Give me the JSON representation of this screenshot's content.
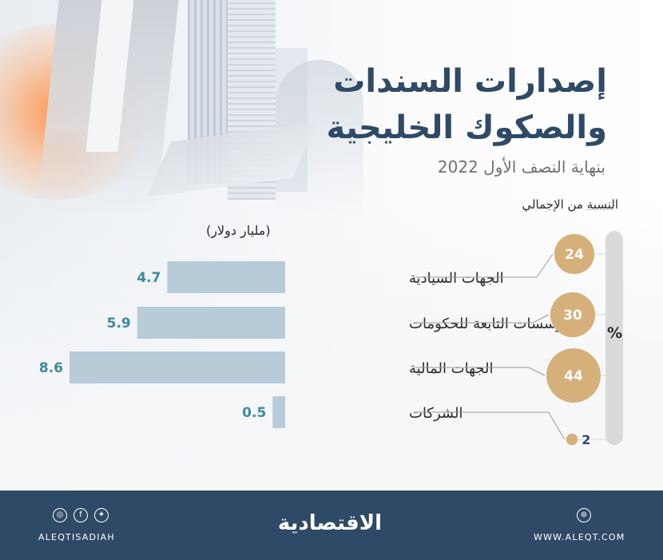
{
  "header": {
    "title_line1": "إصدارات السندات",
    "title_line2": "والصكوك الخليجية",
    "subtitle": "بنهاية النصف الأول 2022"
  },
  "share_label": "النسبة من الإجمالي",
  "unit_label": "(مليار دولار)",
  "percent_sign": "%",
  "chart_data": {
    "type": "bar",
    "orientation": "horizontal",
    "categories": [
      "الجهات السيادية",
      "المؤسسات التابعة للحكومات",
      "الجهات المالية",
      "الشركات"
    ],
    "values": [
      4.7,
      5.9,
      8.6,
      0.5
    ],
    "value_labels": [
      "4.7",
      "5.9",
      "8.6",
      "0.5"
    ],
    "share_percent": [
      24,
      30,
      44,
      2
    ],
    "share_labels": [
      "24",
      "30",
      "44",
      "2"
    ],
    "xlim": [
      0,
      8.6
    ],
    "bar_color": "#b8cbd8",
    "value_color": "#3d8a99",
    "bubble_color": "#d6b07b"
  },
  "footer": {
    "handle": "ALEQTISADIAH",
    "brand": "الاقتصادية",
    "site": "WWW.ALEQT.COM",
    "social_icons": [
      "instagram-icon",
      "facebook-icon",
      "twitter-icon"
    ],
    "web_icon": "globe-icon",
    "background": "#2f4a66"
  }
}
